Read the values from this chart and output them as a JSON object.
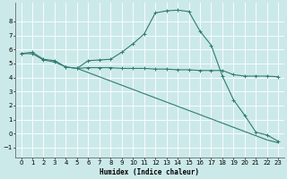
{
  "xlabel": "Humidex (Indice chaleur)",
  "bg_color": "#cce9e9",
  "grid_color": "#ffffff",
  "line_color": "#2e7d6e",
  "xlim": [
    -0.5,
    23.5
  ],
  "ylim": [
    -1.7,
    9.3
  ],
  "xticks": [
    0,
    1,
    2,
    3,
    4,
    5,
    6,
    7,
    8,
    9,
    10,
    11,
    12,
    13,
    14,
    15,
    16,
    17,
    18,
    19,
    20,
    21,
    22,
    23
  ],
  "yticks": [
    -1,
    0,
    1,
    2,
    3,
    4,
    5,
    6,
    7,
    8
  ],
  "line1_x": [
    0,
    1,
    2,
    3,
    4,
    5,
    6,
    7,
    8,
    9,
    10,
    11,
    12,
    13,
    14,
    15,
    16,
    17,
    18,
    19,
    20,
    21,
    22,
    23
  ],
  "line1_y": [
    5.7,
    5.8,
    5.3,
    5.2,
    4.75,
    4.65,
    5.2,
    5.25,
    5.3,
    5.8,
    6.4,
    7.1,
    8.6,
    8.75,
    8.8,
    8.7,
    7.3,
    6.3,
    4.1,
    2.4,
    1.3,
    0.1,
    -0.1,
    -0.55
  ],
  "line2_x": [
    0,
    1,
    2,
    3,
    4,
    5,
    6,
    7,
    8,
    9,
    10,
    11,
    12,
    13,
    14,
    15,
    16,
    17,
    18,
    19,
    20,
    21,
    22,
    23
  ],
  "line2_y": [
    5.7,
    5.7,
    5.25,
    5.1,
    4.75,
    4.65,
    4.7,
    4.7,
    4.7,
    4.65,
    4.65,
    4.65,
    4.6,
    4.6,
    4.55,
    4.55,
    4.5,
    4.5,
    4.5,
    4.2,
    4.1,
    4.1,
    4.1,
    4.05
  ],
  "line3_x": [
    5,
    6,
    7,
    8,
    9,
    10,
    11,
    12,
    13,
    14,
    15,
    16,
    17,
    18,
    19,
    20,
    21,
    22,
    23
  ],
  "line3_y": [
    4.65,
    4.35,
    4.05,
    3.75,
    3.45,
    3.15,
    2.85,
    2.55,
    2.25,
    1.95,
    1.65,
    1.35,
    1.05,
    0.75,
    0.45,
    0.15,
    -0.15,
    -0.45,
    -0.65
  ]
}
